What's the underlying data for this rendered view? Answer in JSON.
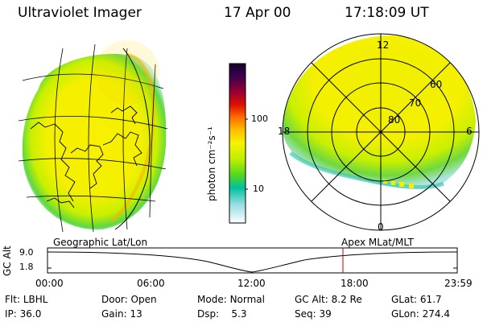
{
  "header": {
    "instrument": "Ultraviolet Imager",
    "date": "17 Apr 00",
    "time": "17:18:09 UT"
  },
  "colorbar": {
    "unit_label": "photon cm⁻²s⁻¹",
    "ticks": [
      "100",
      "10"
    ],
    "colors": [
      "#1a0030",
      "#3a0050",
      "#7a0040",
      "#c00020",
      "#ff2000",
      "#ff7000",
      "#ffb000",
      "#ffe000",
      "#f4f400",
      "#c8f000",
      "#80e000",
      "#30d000",
      "#00c0a0",
      "#80d8d8",
      "#d0ecf0",
      "#ffffff"
    ]
  },
  "polar": {
    "mlt_labels": {
      "top": "12",
      "left": "18",
      "right": "6",
      "bottom": "0"
    },
    "lat_labels": [
      "60",
      "70",
      "80"
    ]
  },
  "altitude_plot": {
    "y_label": "GC Alt",
    "y_ticks": [
      "9.0",
      "1.8"
    ],
    "left_title": "Geographic Lat/Lon",
    "right_title": "Apex MLat/MLT",
    "x_ticks": [
      "00:00",
      "06:00",
      "12:00",
      "18:00",
      "23:59"
    ]
  },
  "status": {
    "row1": [
      {
        "label": "Flt:",
        "value": "LBHL"
      },
      {
        "label": "Door:",
        "value": "Open"
      },
      {
        "label": "Mode:",
        "value": "Normal"
      },
      {
        "label": "GC Alt:",
        "value": "8.2 Re"
      },
      {
        "label": "GLat:",
        "value": "61.7"
      }
    ],
    "row2": [
      {
        "label": "IP:",
        "value": "36.0"
      },
      {
        "label": "Gain:",
        "value": "13"
      },
      {
        "label": "Dsp:",
        "value": "5.3"
      },
      {
        "label": "Seq:",
        "value": "39"
      },
      {
        "label": "GLon:",
        "value": "274.4"
      }
    ]
  }
}
